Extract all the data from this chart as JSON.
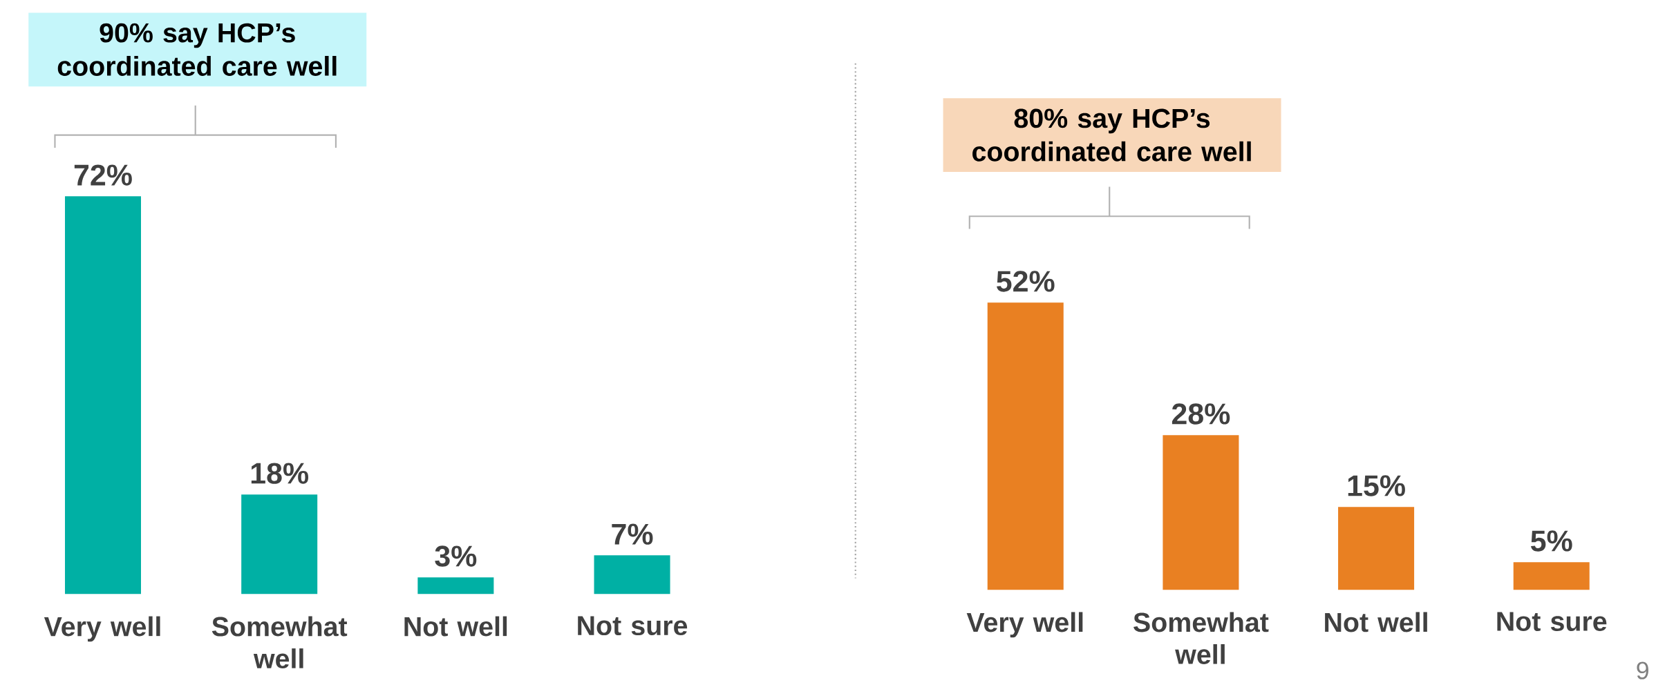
{
  "chart_data": [
    {
      "type": "bar",
      "title": "90% say HCP’s coordinated care well",
      "categories": [
        "Very well",
        "Somewhat well",
        "Not well",
        "Not sure"
      ],
      "values": [
        72,
        18,
        3,
        7
      ],
      "value_labels": [
        "72%",
        "18%",
        "3%",
        "7%"
      ],
      "color": "#00b0a4"
    },
    {
      "type": "bar",
      "title": "80% say HCP’s coordinated care well",
      "categories": [
        "Very well",
        "Somewhat well",
        "Not well",
        "Not sure"
      ],
      "values": [
        52,
        28,
        15,
        5
      ],
      "value_labels": [
        "52%",
        "28%",
        "15%",
        "5%"
      ],
      "color": "#e98022",
      "annotations": [
        "9"
      ]
    }
  ]
}
